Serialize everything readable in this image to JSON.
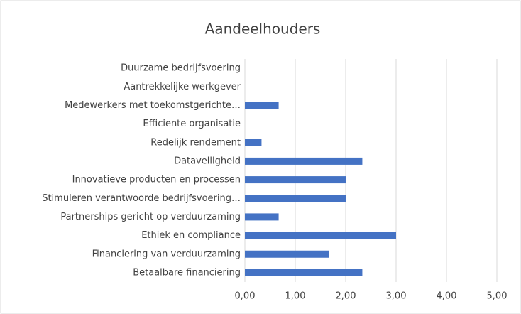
{
  "chart_data": {
    "type": "barh",
    "title": "Aandeelhouders",
    "categories": [
      "Duurzame bedrijfsvoering",
      "Aantrekkelijke werkgever",
      "Medewerkers met toekomstgerichte…",
      "Efficiente organisatie",
      "Redelijk rendement",
      "Dataveiligheid",
      "Innovatieve producten en processen",
      "Stimuleren verantwoorde bedrijfsvoering…",
      "Partnerships gericht op verduurzaming",
      "Ethiek en compliance",
      "Financiering van verduurzaming",
      "Betaalbare financiering"
    ],
    "values": [
      0,
      0,
      0.67,
      0,
      0.33,
      2.33,
      2,
      2,
      0.67,
      3,
      1.67,
      2.33
    ],
    "color": "#4472c4",
    "xlim": [
      0,
      5
    ],
    "xticks": [
      {
        "value": 0,
        "label": "0,00"
      },
      {
        "value": 1,
        "label": "1,00"
      },
      {
        "value": 2,
        "label": "2,00"
      },
      {
        "value": 3,
        "label": "3,00"
      },
      {
        "value": 4,
        "label": "4,00"
      },
      {
        "value": 5,
        "label": "5,00"
      }
    ],
    "grid": true
  }
}
